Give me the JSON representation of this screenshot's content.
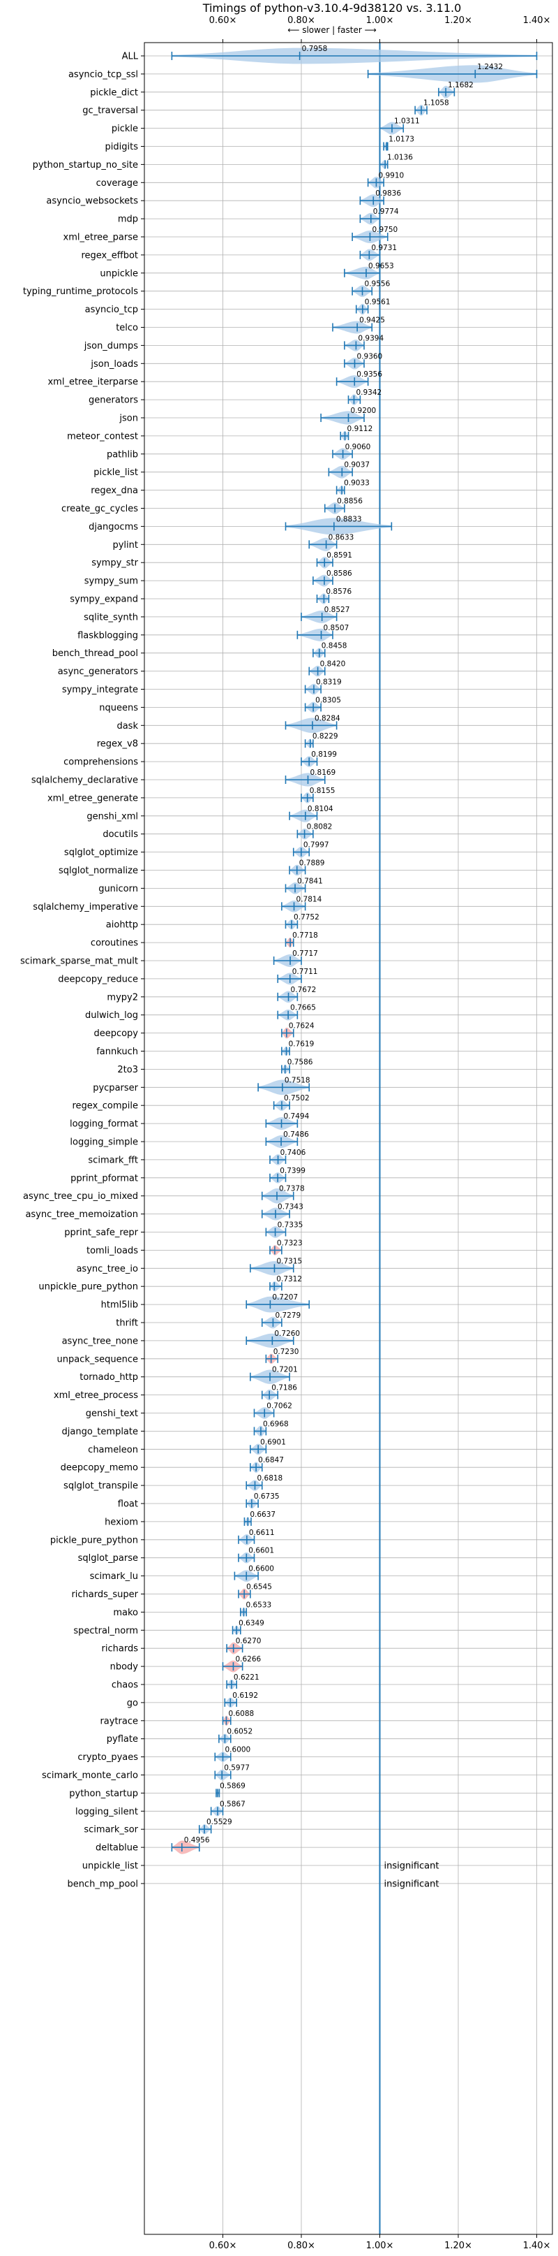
{
  "chart_data": {
    "type": "violin",
    "title": "Timings of python-v3.10.4-9d38120 vs. 3.11.0",
    "subtitle": "⟵ slower | faster ⟶",
    "xlim": [
      0.4,
      1.44
    ],
    "x_ticks": [
      0.6,
      0.8,
      1.0,
      1.2,
      1.4
    ],
    "x_tick_labels": [
      "0.60×",
      "0.80×",
      "1.00×",
      "1.20×",
      "1.40×"
    ],
    "reference_line": 1.0,
    "grid": true,
    "colors": {
      "violin": "#a9c9e8",
      "line": "#1f77b4",
      "highlight": "#f4a6a6"
    },
    "insignificant_label": "insignificant",
    "benchmarks": [
      {
        "name": "ALL",
        "value": 0.7958,
        "label": "0.7958",
        "min": 0.47,
        "max": 1.4,
        "spread": 1.4
      },
      {
        "name": "asyncio_tcp_ssl",
        "value": 1.2432,
        "label": "1.2432",
        "min": 0.97,
        "max": 1.4,
        "spread": 1.6
      },
      {
        "name": "pickle_dict",
        "value": 1.1682,
        "label": "1.1682",
        "min": 1.15,
        "max": 1.19,
        "spread": 1.0
      },
      {
        "name": "gc_traversal",
        "value": 1.1058,
        "label": "1.1058",
        "min": 1.09,
        "max": 1.12,
        "spread": 0.8
      },
      {
        "name": "pickle",
        "value": 1.0311,
        "label": "1.0311",
        "min": 1.0,
        "max": 1.06,
        "spread": 1.0
      },
      {
        "name": "pidigits",
        "value": 1.0173,
        "label": "1.0173",
        "min": 1.01,
        "max": 1.02,
        "spread": 0.6
      },
      {
        "name": "python_startup_no_site",
        "value": 1.0136,
        "label": "1.0136",
        "min": 1.0,
        "max": 1.02,
        "spread": 0.6
      },
      {
        "name": "coverage",
        "value": 0.991,
        "label": "0.9910",
        "min": 0.97,
        "max": 1.01,
        "spread": 0.9
      },
      {
        "name": "asyncio_websockets",
        "value": 0.9836,
        "label": "0.9836",
        "min": 0.95,
        "max": 1.01,
        "spread": 1.0
      },
      {
        "name": "mdp",
        "value": 0.9774,
        "label": "0.9774",
        "min": 0.95,
        "max": 1.0,
        "spread": 0.9
      },
      {
        "name": "xml_etree_parse",
        "value": 0.975,
        "label": "0.9750",
        "min": 0.93,
        "max": 1.02,
        "spread": 1.0
      },
      {
        "name": "regex_effbot",
        "value": 0.9731,
        "label": "0.9731",
        "min": 0.95,
        "max": 1.0,
        "spread": 0.9
      },
      {
        "name": "unpickle",
        "value": 0.9653,
        "label": "0.9653",
        "min": 0.91,
        "max": 1.0,
        "spread": 1.0
      },
      {
        "name": "typing_runtime_protocols",
        "value": 0.9556,
        "label": "0.9556",
        "min": 0.93,
        "max": 0.98,
        "spread": 0.9
      },
      {
        "name": "asyncio_tcp",
        "value": 0.9561,
        "label": "0.9561",
        "min": 0.94,
        "max": 0.97,
        "spread": 0.8
      },
      {
        "name": "telco",
        "value": 0.9425,
        "label": "0.9425",
        "min": 0.88,
        "max": 0.98,
        "spread": 1.0
      },
      {
        "name": "json_dumps",
        "value": 0.9394,
        "label": "0.9394",
        "min": 0.91,
        "max": 0.96,
        "spread": 0.9
      },
      {
        "name": "json_loads",
        "value": 0.936,
        "label": "0.9360",
        "min": 0.91,
        "max": 0.96,
        "spread": 0.9
      },
      {
        "name": "xml_etree_iterparse",
        "value": 0.9356,
        "label": "0.9356",
        "min": 0.89,
        "max": 0.97,
        "spread": 1.0
      },
      {
        "name": "generators",
        "value": 0.9342,
        "label": "0.9342",
        "min": 0.92,
        "max": 0.95,
        "spread": 0.8
      },
      {
        "name": "json",
        "value": 0.92,
        "label": "0.9200",
        "min": 0.85,
        "max": 0.96,
        "spread": 1.1
      },
      {
        "name": "meteor_contest",
        "value": 0.9112,
        "label": "0.9112",
        "min": 0.9,
        "max": 0.92,
        "spread": 0.7
      },
      {
        "name": "pathlib",
        "value": 0.906,
        "label": "0.9060",
        "min": 0.88,
        "max": 0.93,
        "spread": 0.9
      },
      {
        "name": "pickle_list",
        "value": 0.9037,
        "label": "0.9037",
        "min": 0.87,
        "max": 0.93,
        "spread": 1.0
      },
      {
        "name": "regex_dna",
        "value": 0.9033,
        "label": "0.9033",
        "min": 0.89,
        "max": 0.91,
        "spread": 0.6
      },
      {
        "name": "create_gc_cycles",
        "value": 0.8856,
        "label": "0.8856",
        "min": 0.86,
        "max": 0.91,
        "spread": 0.9
      },
      {
        "name": "djangocms",
        "value": 0.8833,
        "label": "0.8833",
        "min": 0.76,
        "max": 1.03,
        "spread": 1.5
      },
      {
        "name": "pylint",
        "value": 0.8633,
        "label": "0.8633",
        "min": 0.82,
        "max": 0.89,
        "spread": 1.1
      },
      {
        "name": "sympy_str",
        "value": 0.8591,
        "label": "0.8591",
        "min": 0.84,
        "max": 0.88,
        "spread": 0.9
      },
      {
        "name": "sympy_sum",
        "value": 0.8586,
        "label": "0.8586",
        "min": 0.83,
        "max": 0.88,
        "spread": 0.9
      },
      {
        "name": "sympy_expand",
        "value": 0.8576,
        "label": "0.8576",
        "min": 0.84,
        "max": 0.87,
        "spread": 0.8
      },
      {
        "name": "sqlite_synth",
        "value": 0.8527,
        "label": "0.8527",
        "min": 0.8,
        "max": 0.89,
        "spread": 1.0
      },
      {
        "name": "flaskblogging",
        "value": 0.8507,
        "label": "0.8507",
        "min": 0.79,
        "max": 0.88,
        "spread": 1.0
      },
      {
        "name": "bench_thread_pool",
        "value": 0.8458,
        "label": "0.8458",
        "min": 0.83,
        "max": 0.86,
        "spread": 0.7
      },
      {
        "name": "async_generators",
        "value": 0.842,
        "label": "0.8420",
        "min": 0.82,
        "max": 0.86,
        "spread": 0.8
      },
      {
        "name": "sympy_integrate",
        "value": 0.8319,
        "label": "0.8319",
        "min": 0.81,
        "max": 0.85,
        "spread": 0.8
      },
      {
        "name": "nqueens",
        "value": 0.8305,
        "label": "0.8305",
        "min": 0.81,
        "max": 0.85,
        "spread": 0.8
      },
      {
        "name": "dask",
        "value": 0.8284,
        "label": "0.8284",
        "min": 0.76,
        "max": 0.89,
        "spread": 1.3
      },
      {
        "name": "regex_v8",
        "value": 0.8229,
        "label": "0.8229",
        "min": 0.81,
        "max": 0.83,
        "spread": 0.6
      },
      {
        "name": "comprehensions",
        "value": 0.8199,
        "label": "0.8199",
        "min": 0.8,
        "max": 0.84,
        "spread": 0.8
      },
      {
        "name": "sqlalchemy_declarative",
        "value": 0.8169,
        "label": "0.8169",
        "min": 0.76,
        "max": 0.86,
        "spread": 1.1
      },
      {
        "name": "xml_etree_generate",
        "value": 0.8155,
        "label": "0.8155",
        "min": 0.8,
        "max": 0.83,
        "spread": 0.8
      },
      {
        "name": "genshi_xml",
        "value": 0.8104,
        "label": "0.8104",
        "min": 0.77,
        "max": 0.84,
        "spread": 1.0
      },
      {
        "name": "docutils",
        "value": 0.8082,
        "label": "0.8082",
        "min": 0.79,
        "max": 0.83,
        "spread": 0.8
      },
      {
        "name": "sqlglot_optimize",
        "value": 0.7997,
        "label": "0.7997",
        "min": 0.78,
        "max": 0.82,
        "spread": 0.8
      },
      {
        "name": "sqlglot_normalize",
        "value": 0.7889,
        "label": "0.7889",
        "min": 0.77,
        "max": 0.81,
        "spread": 0.8
      },
      {
        "name": "gunicorn",
        "value": 0.7841,
        "label": "0.7841",
        "min": 0.76,
        "max": 0.81,
        "spread": 0.9
      },
      {
        "name": "sqlalchemy_imperative",
        "value": 0.7814,
        "label": "0.7814",
        "min": 0.75,
        "max": 0.81,
        "spread": 0.9
      },
      {
        "name": "aiohttp",
        "value": 0.7752,
        "label": "0.7752",
        "min": 0.76,
        "max": 0.79,
        "spread": 0.7
      },
      {
        "name": "coroutines",
        "value": 0.7718,
        "label": "0.7718",
        "min": 0.76,
        "max": 0.78,
        "spread": 0.7,
        "highlight": true
      },
      {
        "name": "scimark_sparse_mat_mult",
        "value": 0.7717,
        "label": "0.7717",
        "min": 0.73,
        "max": 0.8,
        "spread": 1.0
      },
      {
        "name": "deepcopy_reduce",
        "value": 0.7711,
        "label": "0.7711",
        "min": 0.74,
        "max": 0.8,
        "spread": 0.9
      },
      {
        "name": "mypy2",
        "value": 0.7672,
        "label": "0.7672",
        "min": 0.74,
        "max": 0.79,
        "spread": 0.9
      },
      {
        "name": "dulwich_log",
        "value": 0.7665,
        "label": "0.7665",
        "min": 0.74,
        "max": 0.79,
        "spread": 0.8
      },
      {
        "name": "deepcopy",
        "value": 0.7624,
        "label": "0.7624",
        "min": 0.75,
        "max": 0.78,
        "spread": 0.8,
        "highlight": true
      },
      {
        "name": "fannkuch",
        "value": 0.7619,
        "label": "0.7619",
        "min": 0.75,
        "max": 0.77,
        "spread": 0.6
      },
      {
        "name": "2to3",
        "value": 0.7586,
        "label": "0.7586",
        "min": 0.75,
        "max": 0.77,
        "spread": 0.6
      },
      {
        "name": "pycparser",
        "value": 0.7518,
        "label": "0.7518",
        "min": 0.69,
        "max": 0.82,
        "spread": 1.3
      },
      {
        "name": "regex_compile",
        "value": 0.7502,
        "label": "0.7502",
        "min": 0.73,
        "max": 0.77,
        "spread": 0.8
      },
      {
        "name": "logging_format",
        "value": 0.7494,
        "label": "0.7494",
        "min": 0.71,
        "max": 0.79,
        "spread": 1.0
      },
      {
        "name": "logging_simple",
        "value": 0.7486,
        "label": "0.7486",
        "min": 0.71,
        "max": 0.79,
        "spread": 1.0
      },
      {
        "name": "scimark_fft",
        "value": 0.7406,
        "label": "0.7406",
        "min": 0.72,
        "max": 0.76,
        "spread": 0.8
      },
      {
        "name": "pprint_pformat",
        "value": 0.7399,
        "label": "0.7399",
        "min": 0.72,
        "max": 0.76,
        "spread": 0.8
      },
      {
        "name": "async_tree_cpu_io_mixed",
        "value": 0.7378,
        "label": "0.7378",
        "min": 0.7,
        "max": 0.78,
        "spread": 1.3
      },
      {
        "name": "async_tree_memoization",
        "value": 0.7343,
        "label": "0.7343",
        "min": 0.7,
        "max": 0.77,
        "spread": 1.0
      },
      {
        "name": "pprint_safe_repr",
        "value": 0.7335,
        "label": "0.7335",
        "min": 0.71,
        "max": 0.76,
        "spread": 0.9
      },
      {
        "name": "tomli_loads",
        "value": 0.7323,
        "label": "0.7323",
        "min": 0.72,
        "max": 0.75,
        "spread": 0.7,
        "highlight": true
      },
      {
        "name": "async_tree_io",
        "value": 0.7315,
        "label": "0.7315",
        "min": 0.67,
        "max": 0.78,
        "spread": 1.2
      },
      {
        "name": "unpickle_pure_python",
        "value": 0.7312,
        "label": "0.7312",
        "min": 0.72,
        "max": 0.75,
        "spread": 0.7
      },
      {
        "name": "html5lib",
        "value": 0.7207,
        "label": "0.7207",
        "min": 0.66,
        "max": 0.82,
        "spread": 1.4
      },
      {
        "name": "thrift",
        "value": 0.7279,
        "label": "0.7279",
        "min": 0.7,
        "max": 0.75,
        "spread": 0.9
      },
      {
        "name": "async_tree_none",
        "value": 0.726,
        "label": "0.7260",
        "min": 0.66,
        "max": 0.78,
        "spread": 1.2
      },
      {
        "name": "unpack_sequence",
        "value": 0.723,
        "label": "0.7230",
        "min": 0.71,
        "max": 0.74,
        "spread": 0.7,
        "highlight": true
      },
      {
        "name": "tornado_http",
        "value": 0.7201,
        "label": "0.7201",
        "min": 0.67,
        "max": 0.77,
        "spread": 1.2
      },
      {
        "name": "xml_etree_process",
        "value": 0.7186,
        "label": "0.7186",
        "min": 0.7,
        "max": 0.74,
        "spread": 0.8
      },
      {
        "name": "genshi_text",
        "value": 0.7062,
        "label": "0.7062",
        "min": 0.68,
        "max": 0.73,
        "spread": 0.9
      },
      {
        "name": "django_template",
        "value": 0.6968,
        "label": "0.6968",
        "min": 0.68,
        "max": 0.71,
        "spread": 0.8
      },
      {
        "name": "chameleon",
        "value": 0.6901,
        "label": "0.6901",
        "min": 0.67,
        "max": 0.71,
        "spread": 0.8
      },
      {
        "name": "deepcopy_memo",
        "value": 0.6847,
        "label": "0.6847",
        "min": 0.67,
        "max": 0.7,
        "spread": 0.8
      },
      {
        "name": "sqlglot_transpile",
        "value": 0.6818,
        "label": "0.6818",
        "min": 0.66,
        "max": 0.7,
        "spread": 0.8
      },
      {
        "name": "float",
        "value": 0.6735,
        "label": "0.6735",
        "min": 0.66,
        "max": 0.69,
        "spread": 0.7
      },
      {
        "name": "hexiom",
        "value": 0.6637,
        "label": "0.6637",
        "min": 0.655,
        "max": 0.672,
        "spread": 0.6
      },
      {
        "name": "pickle_pure_python",
        "value": 0.6611,
        "label": "0.6611",
        "min": 0.64,
        "max": 0.68,
        "spread": 0.8
      },
      {
        "name": "sqlglot_parse",
        "value": 0.6601,
        "label": "0.6601",
        "min": 0.64,
        "max": 0.68,
        "spread": 0.8
      },
      {
        "name": "scimark_lu",
        "value": 0.66,
        "label": "0.6600",
        "min": 0.63,
        "max": 0.69,
        "spread": 0.9
      },
      {
        "name": "richards_super",
        "value": 0.6545,
        "label": "0.6545",
        "min": 0.64,
        "max": 0.67,
        "spread": 0.8,
        "highlight": true
      },
      {
        "name": "mako",
        "value": 0.6533,
        "label": "0.6533",
        "min": 0.645,
        "max": 0.66,
        "spread": 0.6
      },
      {
        "name": "spectral_norm",
        "value": 0.6349,
        "label": "0.6349",
        "min": 0.625,
        "max": 0.645,
        "spread": 0.6
      },
      {
        "name": "richards",
        "value": 0.627,
        "label": "0.6270",
        "min": 0.61,
        "max": 0.65,
        "spread": 0.9,
        "highlight": true
      },
      {
        "name": "nbody",
        "value": 0.6266,
        "label": "0.6266",
        "min": 0.6,
        "max": 0.65,
        "spread": 0.9,
        "highlight": true
      },
      {
        "name": "chaos",
        "value": 0.6221,
        "label": "0.6221",
        "min": 0.61,
        "max": 0.635,
        "spread": 0.7
      },
      {
        "name": "go",
        "value": 0.6192,
        "label": "0.6192",
        "min": 0.605,
        "max": 0.635,
        "spread": 0.7
      },
      {
        "name": "raytrace",
        "value": 0.6088,
        "label": "0.6088",
        "min": 0.6,
        "max": 0.62,
        "spread": 0.7,
        "highlight": true
      },
      {
        "name": "pyflate",
        "value": 0.6052,
        "label": "0.6052",
        "min": 0.59,
        "max": 0.62,
        "spread": 0.7
      },
      {
        "name": "crypto_pyaes",
        "value": 0.6,
        "label": "0.6000",
        "min": 0.58,
        "max": 0.62,
        "spread": 0.7
      },
      {
        "name": "scimark_monte_carlo",
        "value": 0.5977,
        "label": "0.5977",
        "min": 0.58,
        "max": 0.62,
        "spread": 0.8
      },
      {
        "name": "python_startup",
        "value": 0.5869,
        "label": "0.5869",
        "min": 0.583,
        "max": 0.591,
        "spread": 0.5
      },
      {
        "name": "logging_silent",
        "value": 0.5867,
        "label": "0.5867",
        "min": 0.57,
        "max": 0.6,
        "spread": 0.7
      },
      {
        "name": "scimark_sor",
        "value": 0.5529,
        "label": "0.5529",
        "min": 0.54,
        "max": 0.57,
        "spread": 0.7
      },
      {
        "name": "deltablue",
        "value": 0.4956,
        "label": "0.4956",
        "min": 0.47,
        "max": 0.54,
        "spread": 1.1,
        "highlight": true
      },
      {
        "name": "unpickle_list",
        "insignificant": true
      },
      {
        "name": "bench_mp_pool",
        "insignificant": true
      }
    ]
  }
}
